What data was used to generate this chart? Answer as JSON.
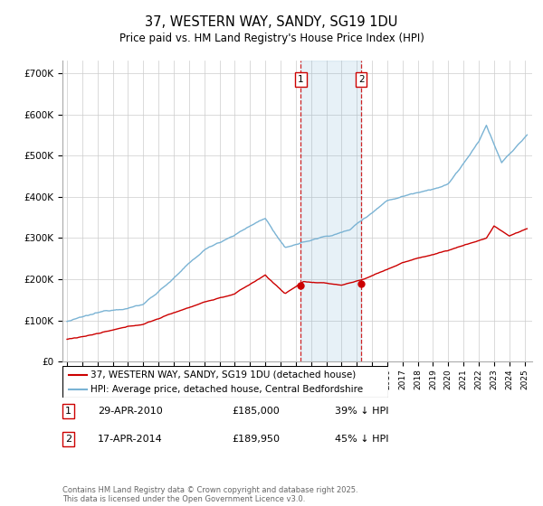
{
  "title": "37, WESTERN WAY, SANDY, SG19 1DU",
  "subtitle": "Price paid vs. HM Land Registry's House Price Index (HPI)",
  "legend_line1": "37, WESTERN WAY, SANDY, SG19 1DU (detached house)",
  "legend_line2": "HPI: Average price, detached house, Central Bedfordshire",
  "sale1_date": "29-APR-2010",
  "sale1_price": 185000,
  "sale1_pct": "39% ↓ HPI",
  "sale2_date": "17-APR-2014",
  "sale2_price": 189950,
  "sale2_pct": "45% ↓ HPI",
  "footnote": "Contains HM Land Registry data © Crown copyright and database right 2025.\nThis data is licensed under the Open Government Licence v3.0.",
  "hpi_color": "#7ab3d4",
  "price_color": "#cc0000",
  "sale1_x": 2010.33,
  "sale2_x": 2014.29,
  "ylim": [
    0,
    730000
  ],
  "xlim_start": 1994.7,
  "xlim_end": 2025.5
}
